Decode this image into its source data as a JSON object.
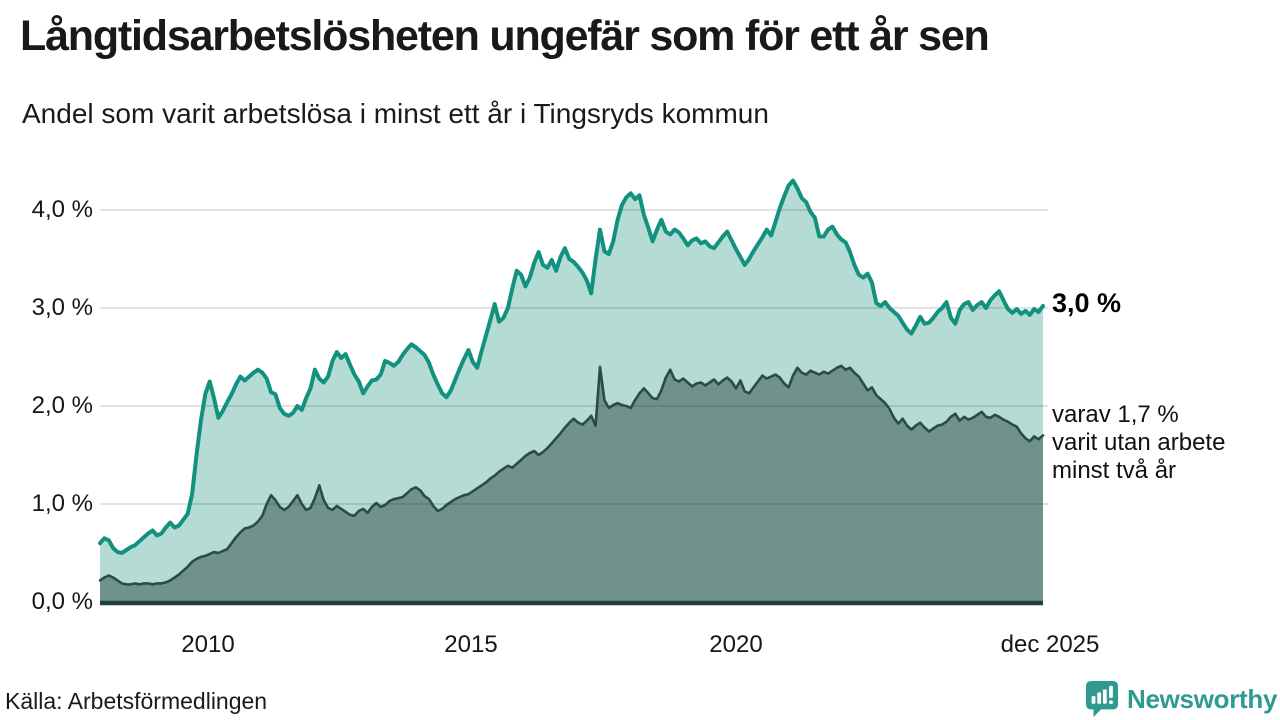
{
  "title": "Långtidsarbetslösheten ungefär som för ett år sen",
  "subtitle": "Andel som varit arbetslösa i minst ett år i Tingsryds kommun",
  "source": "Källa: Arbetsförmedlingen",
  "branding": {
    "name": "Newsworthy",
    "icon": "newsworthy-chart-bubble-icon",
    "brand_color": "#2f9a8f"
  },
  "annotations": {
    "total_end_label": "3,0 %",
    "two_year_lines": [
      "varav 1,7 %",
      "varit utan arbete",
      "minst två år"
    ]
  },
  "chart_data": {
    "type": "area",
    "title": "Långtidsarbetslösheten ungefär som för ett år sen",
    "subtitle": "Andel som varit arbetslösa i minst ett år i Tingsryds kommun",
    "unit": "%",
    "x_start": "2008-01",
    "x_end": "2025-12",
    "x_tick_labels": [
      "2010",
      "2015",
      "2020",
      "dec 2025"
    ],
    "y_ticks": [
      0,
      1,
      2,
      3,
      4
    ],
    "y_tick_labels": [
      "0,0 %",
      "1,0 %",
      "2,0 %",
      "3,0 %",
      "4,0 %"
    ],
    "ylim": [
      0,
      4.5
    ],
    "grid": true,
    "legend_position": "right-annotations",
    "end_values": {
      "total": 3.0,
      "two_year": 1.7
    },
    "colors": {
      "total_line": "#13917f",
      "total_fill": "#b4dbd4",
      "two_year_line": "#2d4b45",
      "two_year_fill": "#6f938c",
      "axis": "#253f3a",
      "grid": "rgba(20,20,30,0.12)"
    },
    "series": [
      {
        "name": "Arbetslösa minst ett år (andel, %)",
        "values": [
          0.6,
          0.65,
          0.63,
          0.55,
          0.51,
          0.5,
          0.53,
          0.56,
          0.58,
          0.62,
          0.66,
          0.7,
          0.73,
          0.68,
          0.7,
          0.76,
          0.81,
          0.76,
          0.78,
          0.84,
          0.9,
          1.1,
          1.5,
          1.85,
          2.12,
          2.25,
          2.08,
          1.88,
          1.95,
          2.04,
          2.12,
          2.22,
          2.3,
          2.26,
          2.3,
          2.34,
          2.37,
          2.34,
          2.28,
          2.14,
          2.12,
          1.98,
          1.92,
          1.9,
          1.93,
          2.0,
          1.96,
          2.08,
          2.18,
          2.37,
          2.28,
          2.24,
          2.3,
          2.46,
          2.55,
          2.49,
          2.53,
          2.42,
          2.32,
          2.25,
          2.13,
          2.2,
          2.26,
          2.27,
          2.32,
          2.46,
          2.44,
          2.41,
          2.45,
          2.52,
          2.58,
          2.63,
          2.6,
          2.56,
          2.52,
          2.44,
          2.32,
          2.22,
          2.13,
          2.09,
          2.16,
          2.27,
          2.38,
          2.48,
          2.57,
          2.45,
          2.39,
          2.56,
          2.72,
          2.88,
          3.04,
          2.86,
          2.9,
          3.0,
          3.2,
          3.38,
          3.34,
          3.22,
          3.31,
          3.46,
          3.57,
          3.44,
          3.41,
          3.49,
          3.38,
          3.52,
          3.61,
          3.5,
          3.47,
          3.42,
          3.36,
          3.28,
          3.15,
          3.5,
          3.8,
          3.58,
          3.55,
          3.68,
          3.9,
          4.05,
          4.13,
          4.17,
          4.11,
          4.15,
          3.95,
          3.82,
          3.68,
          3.8,
          3.9,
          3.78,
          3.75,
          3.8,
          3.77,
          3.71,
          3.64,
          3.69,
          3.71,
          3.66,
          3.68,
          3.63,
          3.61,
          3.67,
          3.73,
          3.78,
          3.69,
          3.6,
          3.52,
          3.44,
          3.5,
          3.58,
          3.65,
          3.72,
          3.8,
          3.74,
          3.88,
          4.02,
          4.14,
          4.25,
          4.3,
          4.22,
          4.12,
          4.08,
          3.98,
          3.92,
          3.73,
          3.73,
          3.8,
          3.83,
          3.75,
          3.7,
          3.67,
          3.57,
          3.44,
          3.34,
          3.31,
          3.35,
          3.26,
          3.05,
          3.02,
          3.06,
          3.0,
          2.96,
          2.92,
          2.85,
          2.78,
          2.74,
          2.82,
          2.91,
          2.84,
          2.85,
          2.9,
          2.96,
          3.0,
          3.06,
          2.9,
          2.84,
          2.98,
          3.04,
          3.06,
          2.98,
          3.03,
          3.06,
          3.0,
          3.08,
          3.13,
          3.17,
          3.08,
          2.99,
          2.95,
          2.99,
          2.94,
          2.97,
          2.93,
          2.99,
          2.96,
          3.02
        ]
      },
      {
        "name": "varav utan arbete minst två år (andel, %)",
        "values": [
          0.22,
          0.25,
          0.27,
          0.25,
          0.22,
          0.19,
          0.18,
          0.18,
          0.19,
          0.18,
          0.19,
          0.19,
          0.18,
          0.19,
          0.19,
          0.2,
          0.22,
          0.25,
          0.28,
          0.32,
          0.36,
          0.41,
          0.44,
          0.46,
          0.47,
          0.49,
          0.51,
          0.5,
          0.52,
          0.54,
          0.6,
          0.66,
          0.71,
          0.75,
          0.76,
          0.78,
          0.82,
          0.88,
          1.0,
          1.09,
          1.04,
          0.97,
          0.94,
          0.97,
          1.03,
          1.09,
          1.0,
          0.94,
          0.96,
          1.06,
          1.19,
          1.04,
          0.96,
          0.94,
          0.98,
          0.95,
          0.92,
          0.89,
          0.88,
          0.93,
          0.95,
          0.91,
          0.97,
          1.01,
          0.97,
          0.99,
          1.03,
          1.05,
          1.06,
          1.07,
          1.11,
          1.15,
          1.17,
          1.14,
          1.08,
          1.05,
          0.98,
          0.93,
          0.95,
          0.99,
          1.02,
          1.05,
          1.07,
          1.09,
          1.1,
          1.13,
          1.16,
          1.19,
          1.22,
          1.26,
          1.29,
          1.33,
          1.36,
          1.39,
          1.37,
          1.41,
          1.45,
          1.49,
          1.52,
          1.54,
          1.5,
          1.53,
          1.57,
          1.62,
          1.67,
          1.72,
          1.78,
          1.83,
          1.87,
          1.83,
          1.81,
          1.85,
          1.9,
          1.8,
          2.4,
          2.06,
          1.98,
          2.01,
          2.03,
          2.01,
          2.0,
          1.98,
          2.06,
          2.13,
          2.18,
          2.13,
          2.08,
          2.07,
          2.16,
          2.29,
          2.37,
          2.27,
          2.25,
          2.28,
          2.24,
          2.2,
          2.23,
          2.24,
          2.21,
          2.24,
          2.27,
          2.22,
          2.26,
          2.29,
          2.25,
          2.18,
          2.26,
          2.15,
          2.13,
          2.19,
          2.25,
          2.31,
          2.28,
          2.3,
          2.32,
          2.29,
          2.23,
          2.19,
          2.31,
          2.39,
          2.34,
          2.32,
          2.36,
          2.34,
          2.32,
          2.35,
          2.33,
          2.36,
          2.39,
          2.41,
          2.37,
          2.39,
          2.34,
          2.3,
          2.23,
          2.16,
          2.19,
          2.11,
          2.07,
          2.03,
          1.97,
          1.88,
          1.82,
          1.87,
          1.8,
          1.76,
          1.8,
          1.83,
          1.78,
          1.74,
          1.77,
          1.8,
          1.81,
          1.84,
          1.89,
          1.92,
          1.85,
          1.89,
          1.86,
          1.88,
          1.91,
          1.94,
          1.89,
          1.88,
          1.91,
          1.89,
          1.86,
          1.84,
          1.81,
          1.79,
          1.72,
          1.67,
          1.64,
          1.69,
          1.66,
          1.7
        ]
      }
    ]
  }
}
